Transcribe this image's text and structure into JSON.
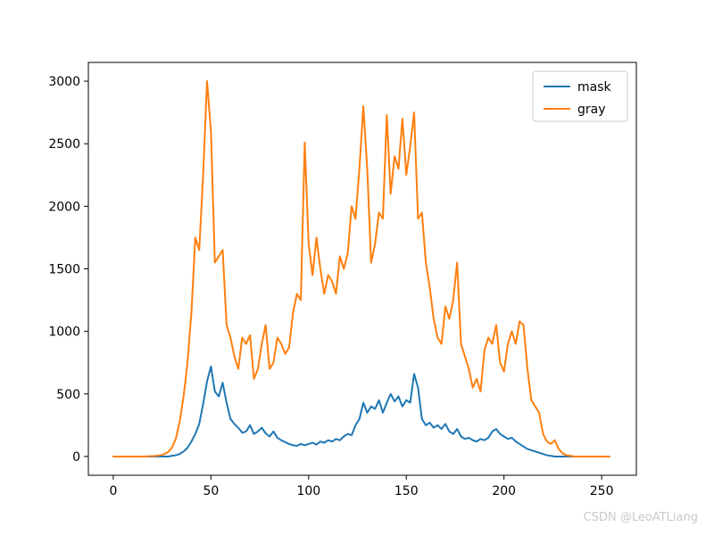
{
  "watermark": "CSDN @LeoATLiang",
  "chart_data": {
    "type": "line",
    "title": "",
    "xlabel": "",
    "ylabel": "",
    "xlim": [
      -12.75,
      267.75
    ],
    "ylim": [
      -150,
      3150
    ],
    "x_ticks": [
      0,
      50,
      100,
      150,
      200,
      250
    ],
    "y_ticks": [
      0,
      500,
      1000,
      1500,
      2000,
      2500,
      3000
    ],
    "grid": false,
    "legend_position": "upper right",
    "x_start": 0,
    "x_step": 2,
    "series": [
      {
        "name": "mask",
        "color": "#1f77b4",
        "values": [
          0,
          0,
          0,
          0,
          0,
          0,
          0,
          0,
          0,
          0,
          0,
          0,
          0,
          0,
          0,
          5,
          10,
          20,
          40,
          70,
          120,
          180,
          260,
          420,
          600,
          720,
          520,
          480,
          590,
          430,
          300,
          260,
          230,
          190,
          200,
          250,
          180,
          200,
          230,
          185,
          160,
          200,
          150,
          130,
          115,
          100,
          90,
          85,
          100,
          90,
          100,
          110,
          95,
          120,
          110,
          130,
          120,
          140,
          130,
          160,
          180,
          170,
          250,
          300,
          430,
          350,
          400,
          380,
          450,
          350,
          430,
          500,
          440,
          480,
          400,
          450,
          430,
          660,
          550,
          300,
          250,
          270,
          230,
          250,
          220,
          260,
          200,
          180,
          220,
          160,
          140,
          150,
          130,
          120,
          140,
          130,
          150,
          200,
          220,
          180,
          160,
          140,
          150,
          120,
          100,
          80,
          60,
          50,
          40,
          30,
          20,
          10,
          5,
          0,
          0,
          0,
          0,
          0,
          0,
          0,
          0,
          0,
          0,
          0,
          0,
          0,
          0,
          0
        ]
      },
      {
        "name": "gray",
        "color": "#ff7f0e",
        "values": [
          0,
          0,
          0,
          0,
          0,
          0,
          0,
          0,
          0,
          2,
          3,
          5,
          10,
          18,
          35,
          70,
          140,
          280,
          480,
          750,
          1150,
          1750,
          1650,
          2250,
          3000,
          2600,
          1550,
          1600,
          1650,
          1050,
          950,
          800,
          700,
          950,
          900,
          970,
          620,
          700,
          900,
          1050,
          700,
          750,
          950,
          900,
          820,
          870,
          1150,
          1300,
          1250,
          2510,
          1700,
          1450,
          1750,
          1500,
          1300,
          1450,
          1400,
          1300,
          1600,
          1500,
          1620,
          2000,
          1900,
          2300,
          2800,
          2300,
          1550,
          1700,
          1950,
          1900,
          2730,
          2100,
          2400,
          2300,
          2700,
          2250,
          2480,
          2750,
          1900,
          1950,
          1550,
          1350,
          1100,
          950,
          900,
          1200,
          1100,
          1250,
          1550,
          900,
          800,
          700,
          550,
          620,
          520,
          850,
          950,
          900,
          1050,
          750,
          680,
          900,
          1000,
          900,
          1080,
          1050,
          700,
          450,
          400,
          350,
          180,
          120,
          100,
          130,
          60,
          25,
          10,
          5,
          0,
          0,
          0,
          0,
          0,
          0,
          0,
          0,
          0,
          0
        ]
      }
    ]
  }
}
